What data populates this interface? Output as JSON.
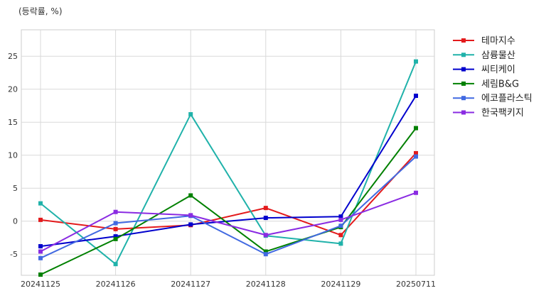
{
  "chart_data": {
    "type": "line",
    "title": "",
    "subtitle": "(등락률, %)",
    "xlabel": "",
    "ylabel": "",
    "categories": [
      "20241125",
      "20241126",
      "20241127",
      "20241128",
      "20241129",
      "20250711"
    ],
    "ylim": [
      -8.2,
      29
    ],
    "yticks": [
      -5,
      0,
      5,
      10,
      15,
      20,
      25
    ],
    "grid": true,
    "legend_position": "right",
    "marker": "square",
    "series": [
      {
        "name": "테마지수",
        "color": "#e31a1c",
        "values": [
          0.2,
          -1.2,
          -0.6,
          2.0,
          -2.1,
          10.3
        ]
      },
      {
        "name": "삼륭물산",
        "color": "#20b2aa",
        "values": [
          2.7,
          -6.5,
          16.2,
          -2.2,
          -3.4,
          24.2
        ]
      },
      {
        "name": "씨티케이",
        "color": "#0000cd",
        "values": [
          -3.8,
          -2.3,
          -0.5,
          0.5,
          0.7,
          19.0
        ]
      },
      {
        "name": "세림B&G",
        "color": "#008000",
        "values": [
          -8.1,
          -2.7,
          3.9,
          -4.6,
          -0.9,
          14.1
        ]
      },
      {
        "name": "에코플라스틱",
        "color": "#4169e1",
        "values": [
          -5.6,
          -0.3,
          0.8,
          -5.0,
          -0.7,
          9.8
        ]
      },
      {
        "name": "한국팩키지",
        "color": "#8a2be2",
        "values": [
          -4.6,
          1.4,
          0.9,
          -2.1,
          0.2,
          4.3
        ]
      }
    ]
  }
}
